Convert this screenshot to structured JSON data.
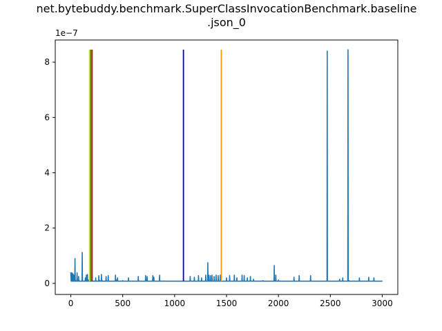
{
  "chart_data": {
    "type": "line",
    "title_line1": "net.bytebuddy.benchmark.SuperClassInvocationBenchmark.baseline",
    "title_line2": ".json_0",
    "xlabel": "",
    "ylabel": "",
    "y_offset_label": "1e−7",
    "xlim": [
      -150,
      3150
    ],
    "ylim": [
      -0.4,
      8.8
    ],
    "x_ticks": [
      0,
      500,
      1000,
      1500,
      2000,
      2500,
      3000
    ],
    "y_ticks": [
      0,
      2,
      4,
      6,
      8
    ],
    "grid": false,
    "legend": "none",
    "series_color": "#1f77b4",
    "series": {
      "baseline": 0.08,
      "points": [
        [
          0,
          0.4
        ],
        [
          5,
          0.2
        ],
        [
          10,
          0.38
        ],
        [
          15,
          0.1
        ],
        [
          20,
          0.35
        ],
        [
          25,
          0.15
        ],
        [
          30,
          0.3
        ],
        [
          40,
          0.9
        ],
        [
          45,
          0.12
        ],
        [
          60,
          0.38
        ],
        [
          65,
          0.1
        ],
        [
          75,
          0.25
        ],
        [
          80,
          0.1
        ],
        [
          110,
          1.12
        ],
        [
          115,
          0.1
        ],
        [
          140,
          0.2
        ],
        [
          150,
          0.3
        ],
        [
          155,
          0.1
        ],
        [
          160,
          0.32
        ],
        [
          170,
          0.12
        ],
        [
          240,
          0.2
        ],
        [
          270,
          0.28
        ],
        [
          280,
          0.1
        ],
        [
          295,
          0.32
        ],
        [
          300,
          0.12
        ],
        [
          340,
          0.25
        ],
        [
          360,
          0.28
        ],
        [
          430,
          0.3
        ],
        [
          440,
          0.12
        ],
        [
          450,
          0.2
        ],
        [
          500,
          0.1
        ],
        [
          555,
          0.2
        ],
        [
          650,
          0.25
        ],
        [
          720,
          0.28
        ],
        [
          735,
          0.25
        ],
        [
          790,
          0.28
        ],
        [
          800,
          0.22
        ],
        [
          855,
          0.3
        ],
        [
          1150,
          0.25
        ],
        [
          1190,
          0.22
        ],
        [
          1230,
          0.28
        ],
        [
          1260,
          0.2
        ],
        [
          1300,
          0.3
        ],
        [
          1320,
          0.75
        ],
        [
          1330,
          0.3
        ],
        [
          1345,
          0.28
        ],
        [
          1360,
          0.3
        ],
        [
          1380,
          0.25
        ],
        [
          1400,
          0.3
        ],
        [
          1420,
          0.28
        ],
        [
          1440,
          0.3
        ],
        [
          1500,
          0.2
        ],
        [
          1530,
          0.28
        ],
        [
          1575,
          0.3
        ],
        [
          1600,
          0.2
        ],
        [
          1650,
          0.3
        ],
        [
          1670,
          0.28
        ],
        [
          1700,
          0.2
        ],
        [
          1730,
          0.25
        ],
        [
          1760,
          0.15
        ],
        [
          1850,
          0.1
        ],
        [
          1960,
          0.65
        ],
        [
          1975,
          0.3
        ],
        [
          2000,
          0.12
        ],
        [
          2150,
          0.22
        ],
        [
          2200,
          0.28
        ],
        [
          2310,
          0.28
        ],
        [
          2470,
          8.4
        ],
        [
          2590,
          0.15
        ],
        [
          2620,
          0.2
        ],
        [
          2670,
          8.45
        ],
        [
          2680,
          0.1
        ],
        [
          2780,
          0.2
        ],
        [
          2870,
          0.22
        ],
        [
          2920,
          0.2
        ],
        [
          3000,
          0.08
        ]
      ]
    },
    "vertical_lines": [
      {
        "x": 180,
        "y_top": 8.45,
        "color": "#ffd700"
      },
      {
        "x": 192,
        "y_top": 8.45,
        "color": "#00aa00"
      },
      {
        "x": 205,
        "y_top": 8.45,
        "color": "#dd0000"
      },
      {
        "x": 1085,
        "y_top": 8.45,
        "color": "#0000cc"
      },
      {
        "x": 1450,
        "y_top": 8.45,
        "color": "#ff9900"
      }
    ]
  }
}
